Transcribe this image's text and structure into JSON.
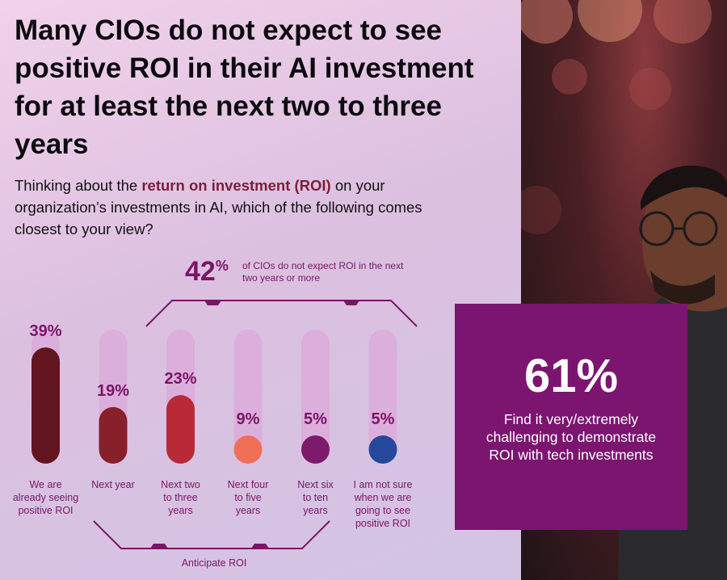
{
  "title": "Many CIOs do not expect to see positive ROI in their AI investment for at least the next two to three years",
  "question": {
    "before": "Thinking about the ",
    "highlight": "return on investment (ROI)",
    "after": " on your organization’s investments in AI, which of the following comes closest to your view?"
  },
  "bracket_note": {
    "value": "42",
    "unit": "%",
    "text": "of CIOs do not expect ROI in the next two years or more"
  },
  "anticipate_label": "Anticipate ROI",
  "callout": {
    "value": "61%",
    "text": "Find it very/extremely challenging to demonstrate ROI with tech investments"
  },
  "chart_data": {
    "type": "bar",
    "categories": [
      [
        "We are",
        "already seeing",
        "positive ROI"
      ],
      [
        "Next year"
      ],
      [
        "Next two",
        "to three",
        "years"
      ],
      [
        "Next four",
        "to five",
        "years"
      ],
      [
        "Next six",
        "to ten",
        "years"
      ],
      [
        "I am not sure",
        "when we are",
        "going to see",
        "positive ROI"
      ]
    ],
    "values": [
      39,
      19,
      23,
      9,
      5,
      5
    ],
    "value_labels": [
      "39%",
      "19%",
      "23%",
      "9%",
      "5%",
      "5%"
    ],
    "colors": [
      "#62141f",
      "#87202a",
      "#b82a36",
      "#f07057",
      "#7d1a6b",
      "#26489a"
    ],
    "ylim": [
      0,
      45
    ]
  },
  "colors": {
    "accent": "#7b1570",
    "track": "#dcaedc",
    "bracket": "#7a1566"
  }
}
